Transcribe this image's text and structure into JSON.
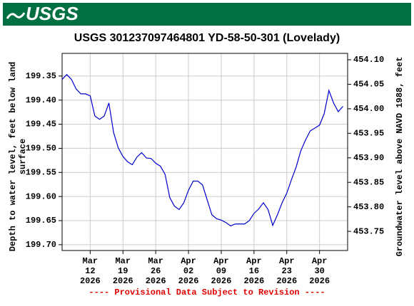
{
  "banner": {
    "logo": "USGS"
  },
  "chart_data": {
    "type": "line",
    "title": "USGS 301237097464801 YD-58-50-301 (Lovelady)",
    "y_label": [
      "Depth to water level, feet below land",
      "surface"
    ],
    "y2_label": "Groundwater level above NAVD 1988, feet",
    "annotations": [
      "---- Provisional Data Subject to Revision ----"
    ],
    "grid": true,
    "y_inverted": true,
    "xlim": [
      "2026-03-06",
      "2026-05-06"
    ],
    "xticks": [
      {
        "value": "2026-03-12",
        "label": [
          "Mar",
          "12",
          "2026"
        ]
      },
      {
        "value": "2026-03-19",
        "label": [
          "Mar",
          "19",
          "2026"
        ]
      },
      {
        "value": "2026-03-26",
        "label": [
          "Mar",
          "26",
          "2026"
        ]
      },
      {
        "value": "2026-04-02",
        "label": [
          "Apr",
          "02",
          "2026"
        ]
      },
      {
        "value": "2026-04-09",
        "label": [
          "Apr",
          "09",
          "2026"
        ]
      },
      {
        "value": "2026-04-16",
        "label": [
          "Apr",
          "16",
          "2026"
        ]
      },
      {
        "value": "2026-04-23",
        "label": [
          "Apr",
          "23",
          "2026"
        ]
      },
      {
        "value": "2026-04-30",
        "label": [
          "Apr",
          "30",
          "2026"
        ]
      }
    ],
    "ylim": [
      199.303,
      199.712
    ],
    "yticks": [
      199.35,
      {
        "value": 199.4,
        "label": "199.40"
      },
      199.45,
      {
        "value": 199.5,
        "label": "199.50"
      },
      199.55,
      {
        "value": 199.6,
        "label": "199.60"
      },
      199.65,
      {
        "value": 199.7,
        "label": "199.70"
      }
    ],
    "y2lim": [
      453.711,
      454.113
    ],
    "y2ticks": [
      {
        "value": 454.1,
        "label": "454.10"
      },
      454.05,
      {
        "value": 454.0,
        "label": "454.00"
      },
      453.95,
      {
        "value": 453.9,
        "label": "453.90"
      },
      453.85,
      {
        "value": 453.8,
        "label": "453.80"
      },
      453.75
    ],
    "x": [
      "2026-03-06",
      "2026-03-07",
      "2026-03-08",
      "2026-03-09",
      "2026-03-10",
      "2026-03-11",
      "2026-03-12",
      "2026-03-13",
      "2026-03-14",
      "2026-03-15",
      "2026-03-16",
      "2026-03-17",
      "2026-03-18",
      "2026-03-19",
      "2026-03-20",
      "2026-03-21",
      "2026-03-22",
      "2026-03-23",
      "2026-03-24",
      "2026-03-25",
      "2026-03-26",
      "2026-03-27",
      "2026-03-28",
      "2026-03-29",
      "2026-03-30",
      "2026-03-31",
      "2026-04-01",
      "2026-04-02",
      "2026-04-03",
      "2026-04-04",
      "2026-04-05",
      "2026-04-06",
      "2026-04-07",
      "2026-04-08",
      "2026-04-09",
      "2026-04-10",
      "2026-04-11",
      "2026-04-12",
      "2026-04-13",
      "2026-04-14",
      "2026-04-15",
      "2026-04-16",
      "2026-04-17",
      "2026-04-18",
      "2026-04-19",
      "2026-04-20",
      "2026-04-21",
      "2026-04-22",
      "2026-04-23",
      "2026-04-24",
      "2026-04-25",
      "2026-04-26",
      "2026-04-27",
      "2026-04-28",
      "2026-04-29",
      "2026-04-30",
      "2026-05-01",
      "2026-05-02",
      "2026-05-03",
      "2026-05-04",
      "2026-05-05"
    ],
    "series": [
      {
        "color": "#0000cc",
        "values": [
          199.357,
          199.347,
          199.357,
          199.377,
          199.387,
          199.387,
          199.391,
          199.433,
          199.44,
          199.433,
          199.406,
          199.467,
          199.499,
          199.517,
          199.528,
          199.534,
          199.518,
          199.509,
          199.52,
          199.521,
          199.531,
          199.537,
          199.554,
          199.602,
          199.62,
          199.627,
          199.613,
          199.587,
          199.568,
          199.568,
          199.576,
          199.607,
          199.638,
          199.646,
          199.649,
          199.654,
          199.661,
          199.657,
          199.657,
          199.657,
          199.65,
          199.635,
          199.626,
          199.613,
          199.627,
          199.66,
          199.638,
          199.613,
          199.593,
          199.565,
          199.539,
          199.505,
          199.483,
          199.464,
          199.458,
          199.452,
          199.428,
          199.38,
          199.406,
          199.424,
          199.413
        ]
      }
    ]
  }
}
